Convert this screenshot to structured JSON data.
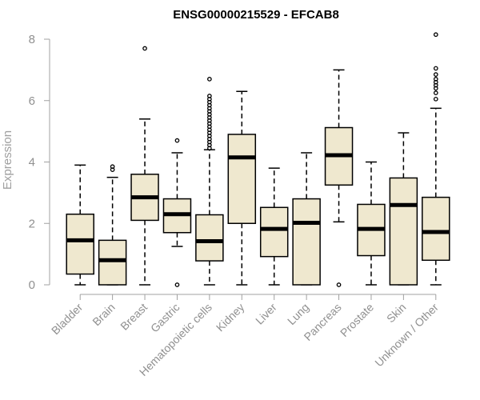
{
  "chart_data": {
    "type": "boxplot",
    "title": "ENSG00000215529 - EFCAB8",
    "xlabel": "",
    "ylabel": "Expression",
    "ylim": [
      0,
      8
    ],
    "yticks": [
      "0",
      "2",
      "4",
      "6",
      "8"
    ],
    "grid": false,
    "legend": "none",
    "box_fill": "#efe8cf",
    "box_stroke": "#000000",
    "axis_color": "#a0a0a0",
    "categories": [
      "Bladder",
      "Brain",
      "Breast",
      "Gastric",
      "Hematopoietic cells",
      "Kidney",
      "Liver",
      "Lung",
      "Pancreas",
      "Prostate",
      "Skin",
      "Unknown / Other"
    ],
    "boxes": [
      {
        "min": 0.0,
        "q1": 0.35,
        "median": 1.45,
        "q3": 2.3,
        "max": 3.9,
        "outliers": []
      },
      {
        "min": 0.0,
        "q1": 0.0,
        "median": 0.8,
        "q3": 1.45,
        "max": 3.5,
        "outliers": [
          3.75,
          3.85
        ]
      },
      {
        "min": 0.0,
        "q1": 2.1,
        "median": 2.85,
        "q3": 3.6,
        "max": 5.4,
        "outliers": [
          7.7
        ]
      },
      {
        "min": 1.25,
        "q1": 1.7,
        "median": 2.3,
        "q3": 2.8,
        "max": 4.3,
        "outliers": [
          0.0,
          4.7
        ]
      },
      {
        "min": 0.0,
        "q1": 0.78,
        "median": 1.42,
        "q3": 2.28,
        "max": 4.4,
        "outliers": [
          4.45,
          4.55,
          4.65,
          4.75,
          4.85,
          4.95,
          5.05,
          5.15,
          5.25,
          5.35,
          5.45,
          5.55,
          5.65,
          5.75,
          5.85,
          5.95,
          6.05,
          6.15,
          6.7
        ]
      },
      {
        "min": 0.0,
        "q1": 2.0,
        "median": 4.15,
        "q3": 4.9,
        "max": 6.3,
        "outliers": []
      },
      {
        "min": 0.0,
        "q1": 0.92,
        "median": 1.82,
        "q3": 2.52,
        "max": 3.8,
        "outliers": []
      },
      {
        "min": 0.0,
        "q1": 0.0,
        "median": 2.02,
        "q3": 2.8,
        "max": 4.3,
        "outliers": []
      },
      {
        "min": 2.05,
        "q1": 3.25,
        "median": 4.22,
        "q3": 5.12,
        "max": 7.0,
        "outliers": [
          0.0
        ]
      },
      {
        "min": 0.0,
        "q1": 0.95,
        "median": 1.82,
        "q3": 2.62,
        "max": 4.0,
        "outliers": []
      },
      {
        "min": 0.0,
        "q1": 0.0,
        "median": 2.6,
        "q3": 3.48,
        "max": 4.95,
        "outliers": []
      },
      {
        "min": 0.0,
        "q1": 0.8,
        "median": 1.72,
        "q3": 2.85,
        "max": 5.75,
        "outliers": [
          6.05,
          6.25,
          6.4,
          6.5,
          6.6,
          6.7,
          6.85,
          7.05,
          8.15
        ]
      }
    ]
  }
}
